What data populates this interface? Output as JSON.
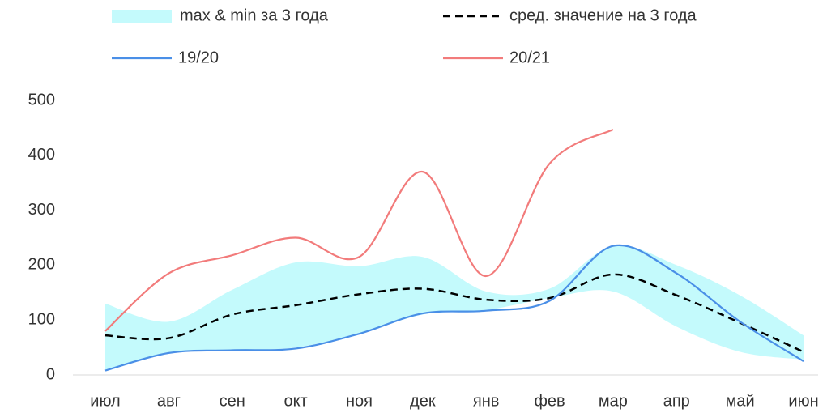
{
  "chart_data": {
    "type": "line",
    "categories": [
      "июл",
      "авг",
      "сен",
      "окт",
      "ноя",
      "дек",
      "янв",
      "фев",
      "мар",
      "апр",
      "май",
      "июн"
    ],
    "band": {
      "name": "max & min за 3 года",
      "color": "#c4fafc",
      "upper": [
        130,
        97,
        155,
        205,
        198,
        215,
        152,
        157,
        235,
        200,
        145,
        72
      ],
      "lower": [
        8,
        40,
        45,
        50,
        75,
        110,
        118,
        140,
        152,
        88,
        42,
        28
      ]
    },
    "series": [
      {
        "name": "сред. значение на 3 года",
        "color": "#000000",
        "dashed": true,
        "values": [
          72,
          67,
          110,
          127,
          147,
          157,
          137,
          140,
          183,
          145,
          95,
          42
        ]
      },
      {
        "name": "19/20",
        "color": "#4a8fe7",
        "values": [
          8,
          40,
          45,
          48,
          75,
          112,
          117,
          135,
          235,
          185,
          97,
          25
        ]
      },
      {
        "name": "20/21",
        "color": "#f27b7b",
        "values": [
          80,
          185,
          218,
          250,
          215,
          370,
          180,
          385,
          447,
          null,
          null,
          null
        ]
      }
    ],
    "ylim": [
      0,
      500
    ],
    "yticks": [
      0,
      100,
      200,
      300,
      400,
      500
    ]
  }
}
